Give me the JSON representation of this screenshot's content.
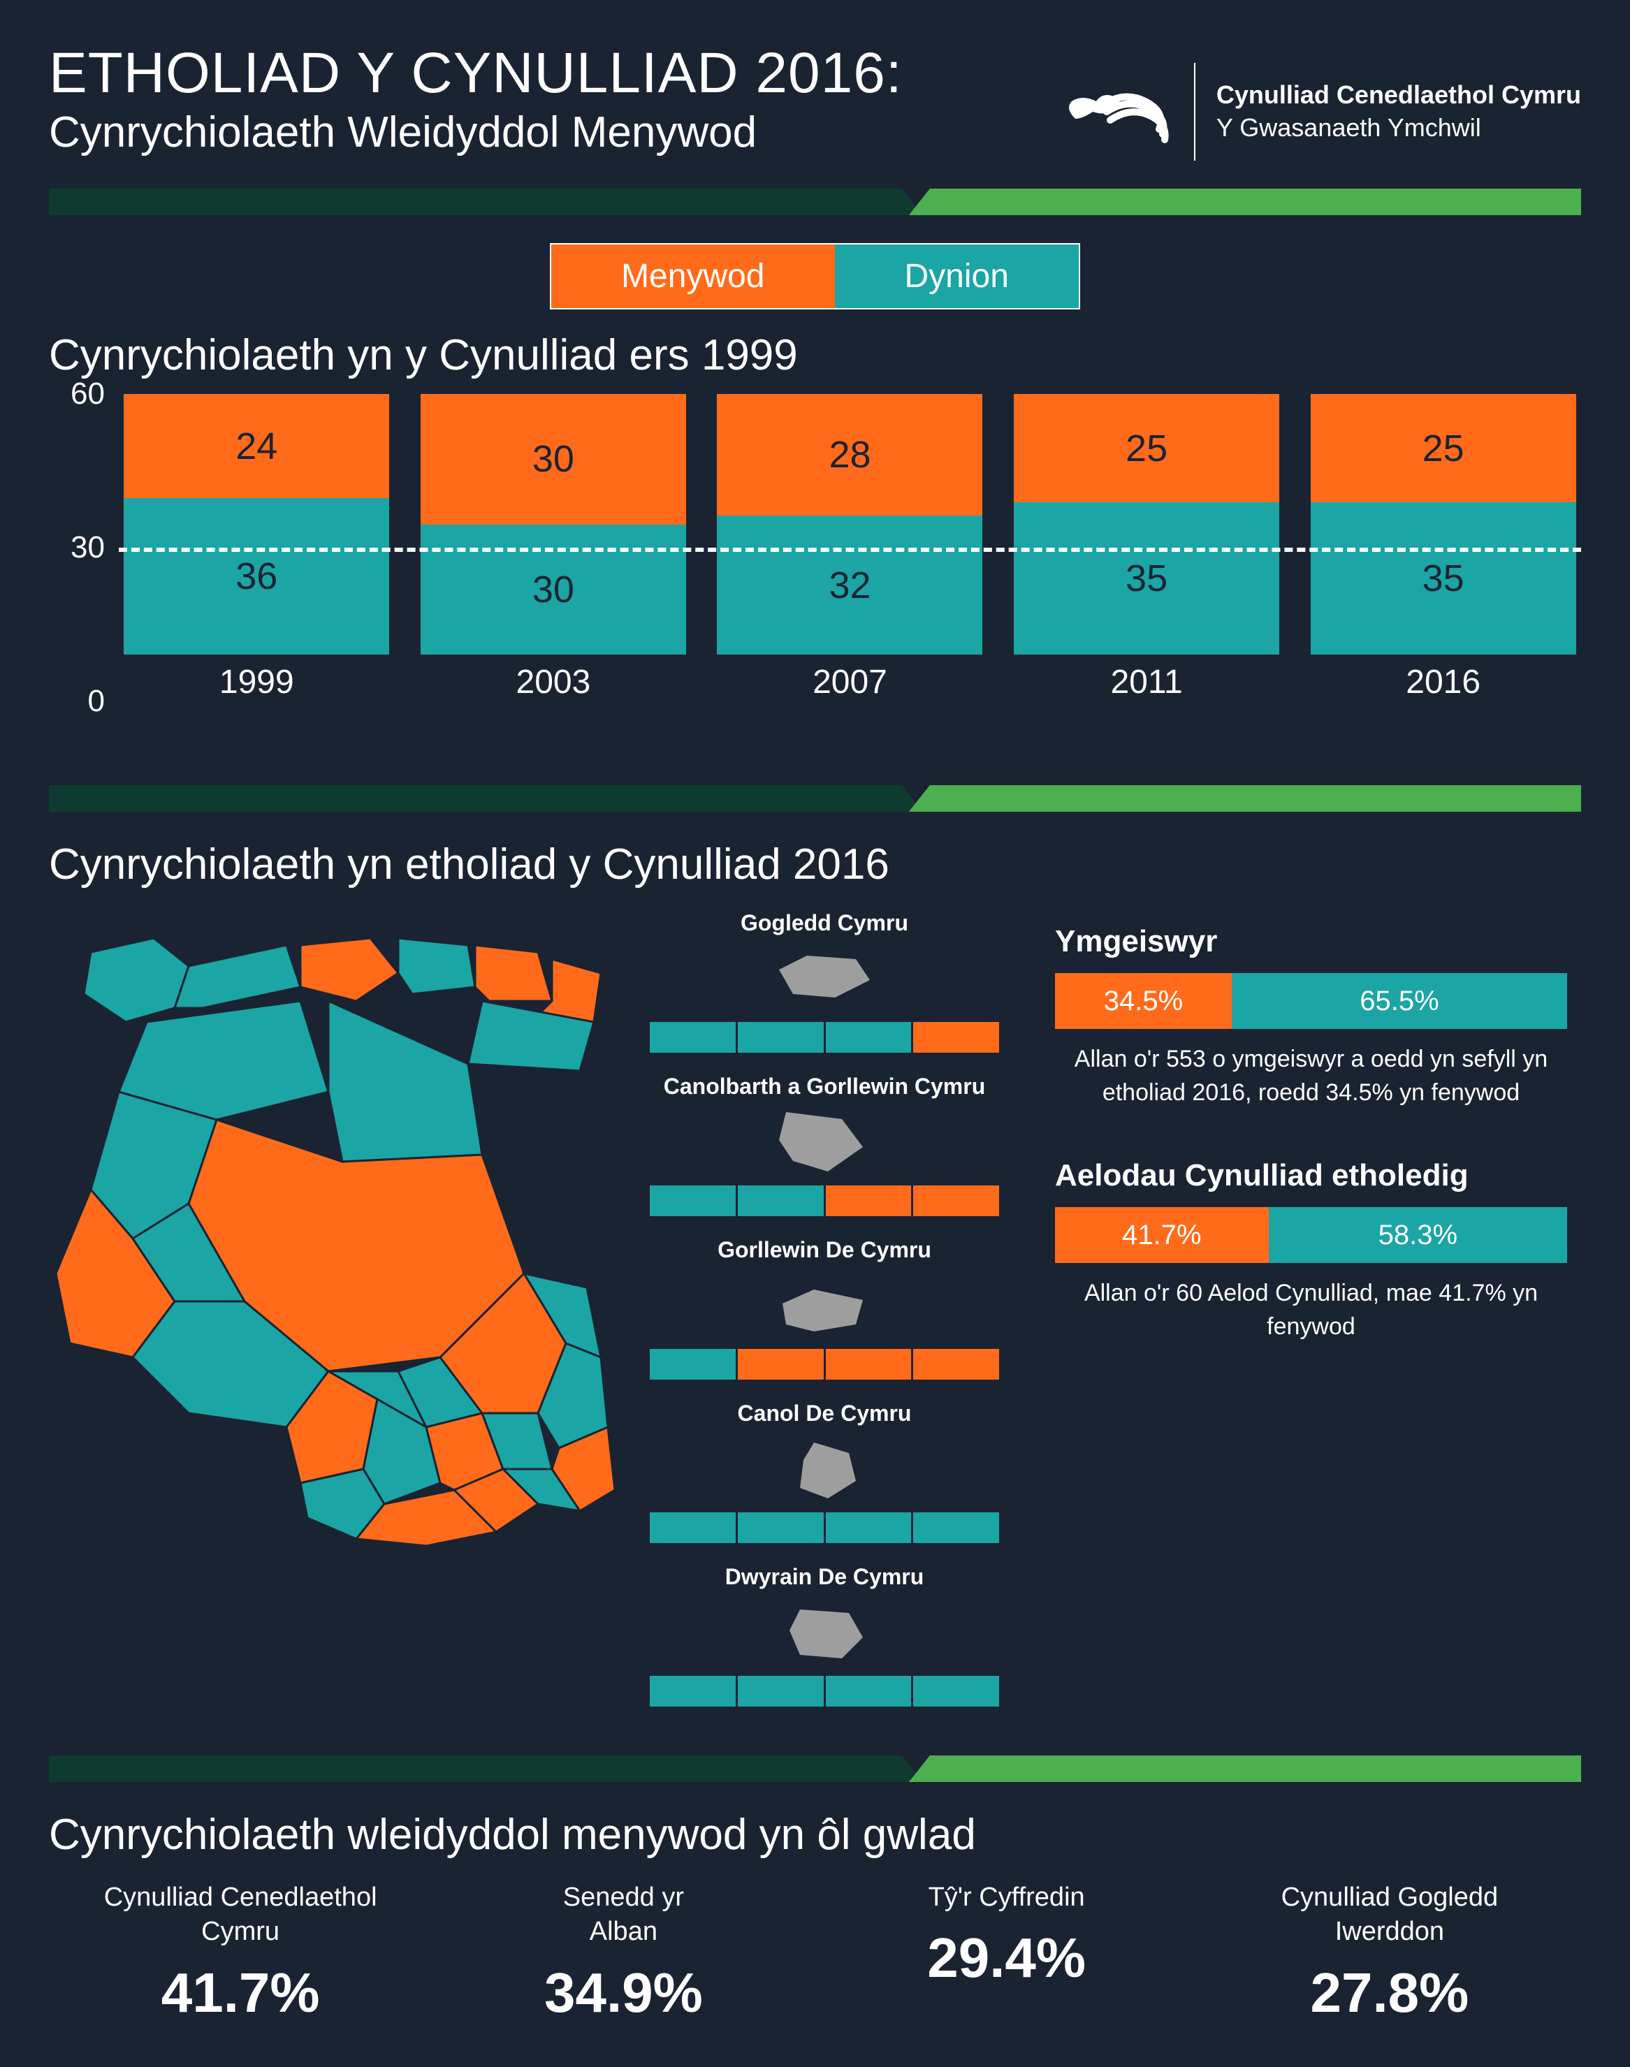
{
  "colors": {
    "background": "#1a2332",
    "orange": "#ff6b1a",
    "teal": "#1ba5a5",
    "green_stripe": "#4caf50",
    "dark_stripe": "#0e3a30",
    "text": "#ffffff",
    "map_grey": "#9e9e9e"
  },
  "typography": {
    "title_fontsize": 82,
    "subtitle_fontsize": 62,
    "section_title_fontsize": 62,
    "body_fontsize": 34,
    "font_family": "sans-serif"
  },
  "header": {
    "title": "ETHOLIAD Y CYNULLIAD 2016:",
    "subtitle": "Cynrychiolaeth Wleidyddol Menywod",
    "brand_line1": "Cynulliad Cenedlaethol Cymru",
    "brand_line2": "Y Gwasanaeth Ymchwil"
  },
  "legend": {
    "women": "Menywod",
    "men": "Dynion"
  },
  "section1": {
    "title": "Cynrychiolaeth yn y Cynulliad ers 1999",
    "type": "stacked-bar",
    "ylim": [
      0,
      60
    ],
    "yticks": [
      0,
      30,
      60
    ],
    "halfline_at": 30,
    "categories": [
      "1999",
      "2003",
      "2007",
      "2011",
      "2016"
    ],
    "women": [
      24,
      30,
      28,
      25,
      25
    ],
    "men": [
      36,
      30,
      32,
      35,
      35
    ],
    "bar_width": 0.85
  },
  "section2": {
    "title": "Cynrychiolaeth yn etholiad y Cynulliad 2016",
    "regions": [
      {
        "name": "Gogledd Cymru",
        "cells": [
          "t",
          "t",
          "t",
          "o"
        ]
      },
      {
        "name": "Canolbarth a Gorllewin Cymru",
        "cells": [
          "t",
          "t",
          "o",
          "o"
        ]
      },
      {
        "name": "Gorllewin De Cymru",
        "cells": [
          "t",
          "o",
          "o",
          "o"
        ]
      },
      {
        "name": "Canol De Cymru",
        "cells": [
          "t",
          "t",
          "t",
          "t"
        ]
      },
      {
        "name": "Dwyrain De Cymru",
        "cells": [
          "t",
          "t",
          "t",
          "t"
        ]
      }
    ],
    "candidates": {
      "title": "Ymgeiswyr",
      "women_pct": 34.5,
      "men_pct": 65.5,
      "women_label": "34.5%",
      "men_label": "65.5%",
      "desc": "Allan o'r 553 o ymgeiswyr a oedd yn sefyll yn etholiad 2016, roedd 34.5% yn fenywod"
    },
    "elected": {
      "title": "Aelodau Cynulliad etholedig",
      "women_pct": 41.7,
      "men_pct": 58.3,
      "women_label": "41.7%",
      "men_label": "58.3%",
      "desc": "Allan o'r 60 Aelod Cynulliad, mae 41.7% yn fenywod"
    }
  },
  "section3": {
    "title": "Cynrychiolaeth wleidyddol menywod yn ôl gwlad",
    "countries": [
      {
        "name": "Cynulliad Cenedlaethol Cymru",
        "pct": "41.7%"
      },
      {
        "name": "Senedd yr Alban",
        "pct": "34.9%"
      },
      {
        "name": "Tŷ'r Cyffredin",
        "pct": "29.4%"
      },
      {
        "name": "Cynulliad Gogledd Iwerddon",
        "pct": "27.8%"
      }
    ]
  }
}
